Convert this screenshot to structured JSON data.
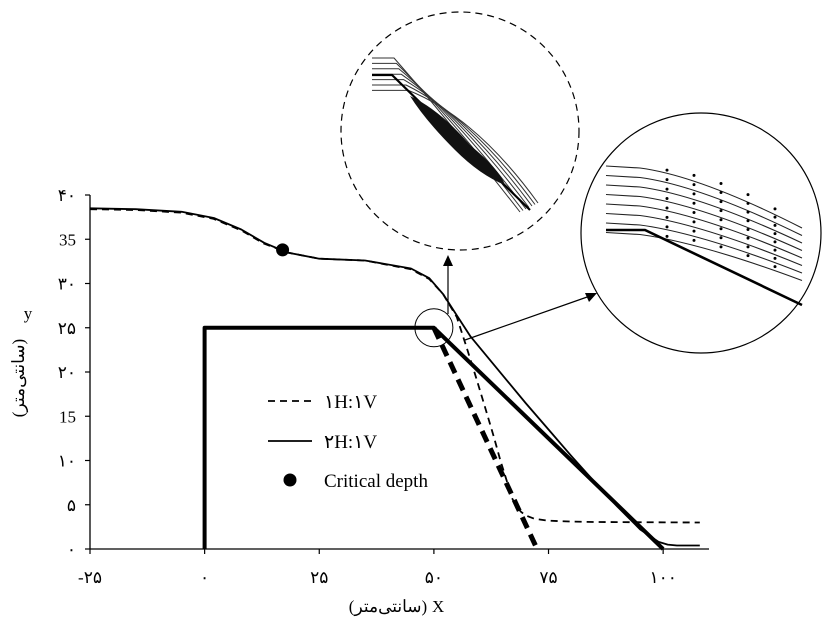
{
  "chart_data": {
    "type": "line",
    "xlabel": "X",
    "xunit": "(سانتی‌متر)",
    "ylabel": "y",
    "yunit": "(سانتی‌متر)",
    "xlim": [
      -25,
      110
    ],
    "ylim": [
      0,
      40
    ],
    "x_ticks": [
      {
        "v": -25,
        "label": "-۲۵"
      },
      {
        "v": 0,
        "label": "۰"
      },
      {
        "v": 25,
        "label": "۲۵"
      },
      {
        "v": 50,
        "label": "۵۰"
      },
      {
        "v": 75,
        "label": "۷۵"
      },
      {
        "v": 100,
        "label": "۱۰۰"
      }
    ],
    "y_ticks": [
      {
        "v": 0,
        "label": "۰"
      },
      {
        "v": 5,
        "label": "۵"
      },
      {
        "v": 10,
        "label": "۱۰"
      },
      {
        "v": 15,
        "label": "15"
      },
      {
        "v": 20,
        "label": "۲۰"
      },
      {
        "v": 25,
        "label": "۲۵"
      },
      {
        "v": 30,
        "label": "۳۰"
      },
      {
        "v": 35,
        "label": "35"
      },
      {
        "v": 40,
        "label": "۴۰"
      }
    ],
    "legend": [
      {
        "label": "۱H:۱V",
        "style": "dashed"
      },
      {
        "label": "۲H:۱V",
        "style": "solid"
      },
      {
        "label": "Critical depth",
        "style": "dot"
      }
    ],
    "grid": false,
    "series": [
      {
        "name": "۱H:۱V",
        "role": "bed",
        "style": "dashed-thick",
        "x": [
          50,
          72.5
        ],
        "y": [
          25,
          0
        ]
      },
      {
        "name": "۲H:۱V",
        "role": "bed",
        "style": "solid-thick",
        "x": [
          0,
          0,
          50,
          100
        ],
        "y": [
          0,
          25,
          25,
          0
        ]
      },
      {
        "name": "۱H:۱V",
        "role": "water-surface",
        "style": "dashed",
        "x": [
          -25,
          -15,
          -5,
          2,
          8,
          13,
          18,
          25,
          35,
          45,
          49,
          52,
          55,
          57,
          59,
          61,
          63,
          64.5,
          66,
          67,
          68,
          69,
          70,
          72,
          75,
          80,
          85,
          108
        ],
        "y": [
          38.4,
          38.3,
          38,
          37.3,
          36,
          34.5,
          33.5,
          32.8,
          32.6,
          31.6,
          30.5,
          28.8,
          26.2,
          23,
          19.7,
          16.3,
          12.8,
          10,
          7.5,
          5.8,
          4.8,
          4.2,
          3.8,
          3.4,
          3.2,
          3.1,
          3.05,
          3
        ]
      },
      {
        "name": "۲H:۱V",
        "role": "water-surface",
        "style": "solid",
        "x": [
          -25,
          -15,
          -5,
          2,
          8,
          13,
          18,
          25,
          35,
          45,
          49,
          52,
          55,
          58,
          62,
          66,
          70,
          75,
          80,
          85,
          90,
          95,
          99,
          101,
          103,
          108
        ],
        "y": [
          38.5,
          38.4,
          38.1,
          37.4,
          36.1,
          34.6,
          33.5,
          32.8,
          32.6,
          31.7,
          30.6,
          28.8,
          26.4,
          24,
          21.5,
          19,
          16.5,
          13.5,
          10.5,
          7.6,
          4.8,
          2.2,
          0.8,
          0.5,
          0.4,
          0.4
        ]
      }
    ],
    "points": [
      {
        "name": "Critical depth",
        "x": 17,
        "y": 33.8
      }
    ]
  }
}
